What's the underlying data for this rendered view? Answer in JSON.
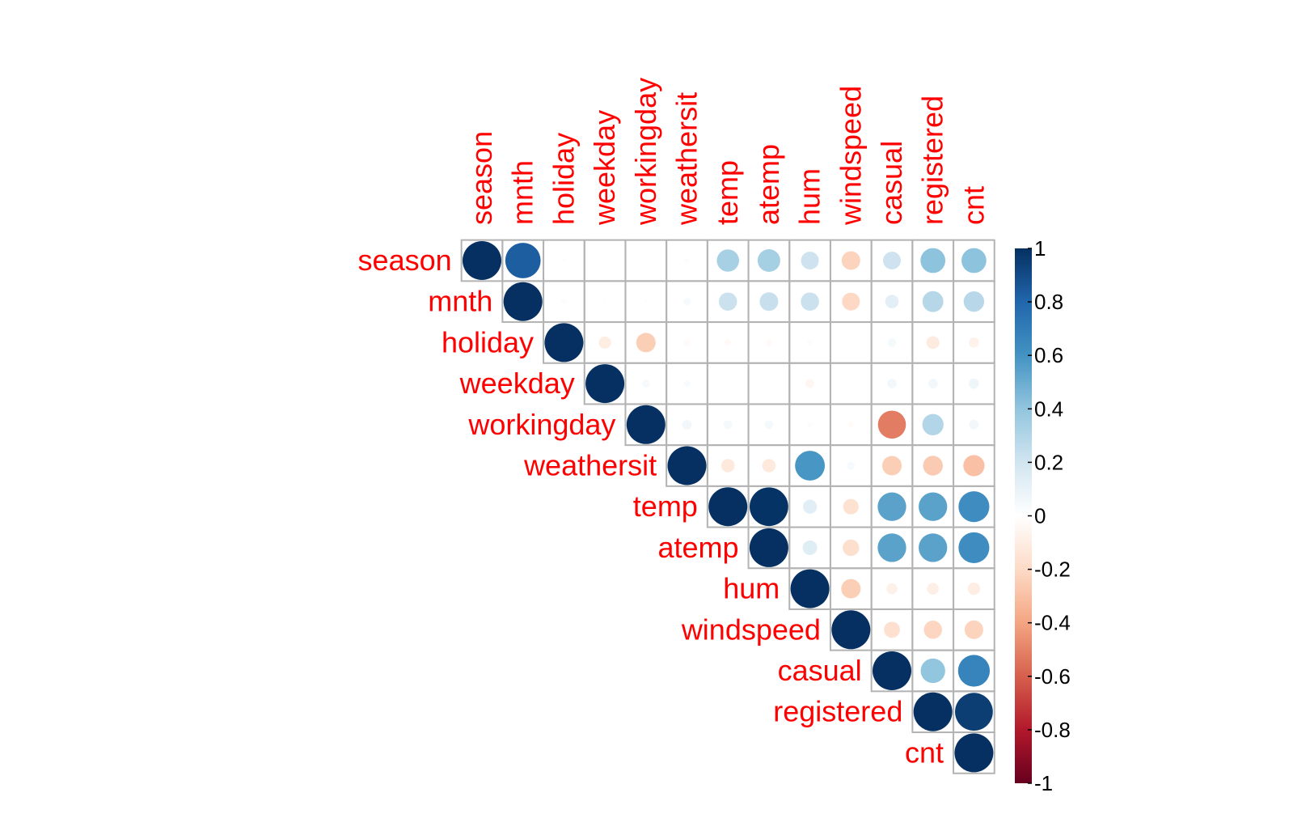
{
  "chart_data": {
    "type": "heatmap",
    "variables": [
      "season",
      "mnth",
      "holiday",
      "weekday",
      "workingday",
      "weathersit",
      "temp",
      "atemp",
      "hum",
      "windspeed",
      "casual",
      "registered",
      "cnt"
    ],
    "matrix_upper": [
      [
        1,
        0.83,
        -0.01,
        0.0,
        0.01,
        0.02,
        0.33,
        0.34,
        0.21,
        -0.23,
        0.21,
        0.41,
        0.41
      ],
      [
        null,
        1,
        0.02,
        0.01,
        -0.01,
        0.04,
        0.22,
        0.23,
        0.22,
        -0.21,
        0.12,
        0.29,
        0.28
      ],
      [
        null,
        null,
        1,
        -0.1,
        -0.25,
        -0.03,
        -0.03,
        -0.03,
        -0.02,
        0.0,
        0.05,
        -0.11,
        -0.07
      ],
      [
        null,
        null,
        null,
        1,
        0.04,
        0.03,
        0.0,
        0.0,
        -0.05,
        0.01,
        0.06,
        0.06,
        0.07
      ],
      [
        null,
        null,
        null,
        null,
        1,
        0.06,
        0.05,
        0.05,
        0.02,
        -0.02,
        -0.52,
        0.3,
        0.06
      ],
      [
        null,
        null,
        null,
        null,
        null,
        1,
        -0.12,
        -0.12,
        0.59,
        0.04,
        -0.25,
        -0.26,
        -0.3
      ],
      [
        null,
        null,
        null,
        null,
        null,
        null,
        1,
        0.99,
        0.13,
        -0.16,
        0.54,
        0.54,
        0.63
      ],
      [
        null,
        null,
        null,
        null,
        null,
        null,
        null,
        1,
        0.14,
        -0.18,
        0.54,
        0.54,
        0.63
      ],
      [
        null,
        null,
        null,
        null,
        null,
        null,
        null,
        null,
        1,
        -0.25,
        -0.08,
        -0.09,
        -0.1
      ],
      [
        null,
        null,
        null,
        null,
        null,
        null,
        null,
        null,
        null,
        1,
        -0.17,
        -0.22,
        -0.23
      ],
      [
        null,
        null,
        null,
        null,
        null,
        null,
        null,
        null,
        null,
        null,
        1,
        0.4,
        0.67
      ],
      [
        null,
        null,
        null,
        null,
        null,
        null,
        null,
        null,
        null,
        null,
        null,
        1,
        0.95
      ],
      [
        null,
        null,
        null,
        null,
        null,
        null,
        null,
        null,
        null,
        null,
        null,
        null,
        1
      ]
    ],
    "colorbar": {
      "range": [
        -1,
        1
      ],
      "ticks": [
        "1",
        "0.8",
        "0.6",
        "0.4",
        "0.2",
        "0",
        "-0.2",
        "-0.4",
        "-0.6",
        "-0.8",
        "-1"
      ]
    },
    "label_color": "#ff0000",
    "grid_color": "#b3b3b3",
    "palette": [
      "#67001f",
      "#b2182b",
      "#d6604d",
      "#f4a582",
      "#fddbc7",
      "#ffffff",
      "#d1e5f0",
      "#92c5de",
      "#4393c3",
      "#2166ac",
      "#053061"
    ]
  }
}
